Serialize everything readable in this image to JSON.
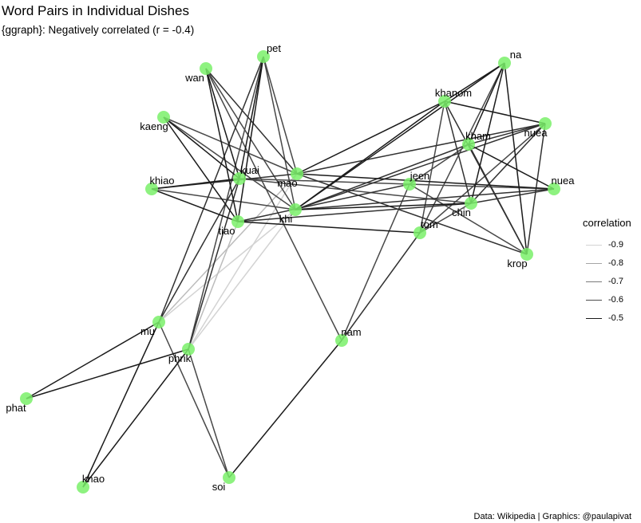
{
  "title": "Word Pairs in Individual Dishes",
  "subtitle": "{ggraph}: Negatively correlated (r = -0.4)",
  "caption": "Data: Wikipedia | Graphics: @paulapivat",
  "node_color": "#7af06a",
  "legend": {
    "title": "correlation",
    "items": [
      {
        "label": "-0.9",
        "value": -0.9,
        "color": "#d3d3d3"
      },
      {
        "label": "-0.8",
        "value": -0.8,
        "color": "#a6a6a6"
      },
      {
        "label": "-0.7",
        "value": -0.7,
        "color": "#7a7a7a"
      },
      {
        "label": "-0.6",
        "value": -0.6,
        "color": "#4d4d4d"
      },
      {
        "label": "-0.5",
        "value": -0.5,
        "color": "#1a1a1a"
      }
    ]
  },
  "graph": {
    "nodes": [
      {
        "id": "pet",
        "label": "pet"
      },
      {
        "id": "wan",
        "label": "wan"
      },
      {
        "id": "kaeng",
        "label": "kaeng"
      },
      {
        "id": "khiao",
        "label": "khiao"
      },
      {
        "id": "kuai",
        "label": "kuai"
      },
      {
        "id": "mao",
        "label": "mao"
      },
      {
        "id": "khi",
        "label": "khi"
      },
      {
        "id": "tiao",
        "label": "tiao"
      },
      {
        "id": "jeen",
        "label": "jeen"
      },
      {
        "id": "khanom",
        "label": "khanom"
      },
      {
        "id": "na",
        "label": "na"
      },
      {
        "id": "kham",
        "label": "kham"
      },
      {
        "id": "nuea_top",
        "label": "nuea"
      },
      {
        "id": "nuea",
        "label": "nuea"
      },
      {
        "id": "chin",
        "label": "chin"
      },
      {
        "id": "tom",
        "label": "tom"
      },
      {
        "id": "krop",
        "label": "krop"
      },
      {
        "id": "mu",
        "label": "mu"
      },
      {
        "id": "phrik",
        "label": "phrik"
      },
      {
        "id": "phat",
        "label": "phat"
      },
      {
        "id": "nam",
        "label": "nam"
      },
      {
        "id": "khao",
        "label": "khao"
      },
      {
        "id": "soi",
        "label": "soi"
      }
    ],
    "edges": [
      {
        "source": "wan",
        "target": "mao",
        "r": -0.55
      },
      {
        "source": "wan",
        "target": "kuai",
        "r": -0.5
      },
      {
        "source": "wan",
        "target": "tiao",
        "r": -0.5
      },
      {
        "source": "wan",
        "target": "khi",
        "r": -0.6
      },
      {
        "source": "wan",
        "target": "nam",
        "r": -0.6
      },
      {
        "source": "pet",
        "target": "kuai",
        "r": -0.5
      },
      {
        "source": "pet",
        "target": "tiao",
        "r": -0.5
      },
      {
        "source": "pet",
        "target": "khi",
        "r": -0.6
      },
      {
        "source": "pet",
        "target": "mao",
        "r": -0.6
      },
      {
        "source": "pet",
        "target": "mu",
        "r": -0.55
      },
      {
        "source": "pet",
        "target": "phrik",
        "r": -0.6
      },
      {
        "source": "kaeng",
        "target": "kuai",
        "r": -0.5
      },
      {
        "source": "kaeng",
        "target": "tiao",
        "r": -0.5
      },
      {
        "source": "kaeng",
        "target": "mao",
        "r": -0.6
      },
      {
        "source": "kaeng",
        "target": "khi",
        "r": -0.6
      },
      {
        "source": "khiao",
        "target": "kuai",
        "r": -0.5
      },
      {
        "source": "khiao",
        "target": "tiao",
        "r": -0.5
      },
      {
        "source": "khiao",
        "target": "mao",
        "r": -0.55
      },
      {
        "source": "khiao",
        "target": "khi",
        "r": -0.6
      },
      {
        "source": "kuai",
        "target": "jeen",
        "r": -0.6
      },
      {
        "source": "kuai",
        "target": "chin",
        "r": -0.6
      },
      {
        "source": "kuai",
        "target": "mu",
        "r": -0.55
      },
      {
        "source": "kuai",
        "target": "phrik",
        "r": -0.55
      },
      {
        "source": "tiao",
        "target": "tom",
        "r": -0.5
      },
      {
        "source": "tiao",
        "target": "jeen",
        "r": -0.55
      },
      {
        "source": "tiao",
        "target": "chin",
        "r": -0.55
      },
      {
        "source": "mao",
        "target": "khanom",
        "r": -0.5
      },
      {
        "source": "mao",
        "target": "nuea",
        "r": -0.5
      },
      {
        "source": "mao",
        "target": "nuea_top",
        "r": -0.55
      },
      {
        "source": "mao",
        "target": "krop",
        "r": -0.55
      },
      {
        "source": "khi",
        "target": "khanom",
        "r": -0.5
      },
      {
        "source": "khi",
        "target": "na",
        "r": -0.5
      },
      {
        "source": "khi",
        "target": "kham",
        "r": -0.55
      },
      {
        "source": "khi",
        "target": "nuea_top",
        "r": -0.55
      },
      {
        "source": "khi",
        "target": "chin",
        "r": -0.5
      },
      {
        "source": "khi",
        "target": "nuea",
        "r": -0.55
      },
      {
        "source": "khi",
        "target": "mu",
        "r": -0.9
      },
      {
        "source": "khi",
        "target": "phrik",
        "r": -0.9
      },
      {
        "source": "mao",
        "target": "phrik",
        "r": -0.9
      },
      {
        "source": "mao",
        "target": "mu",
        "r": -0.85
      },
      {
        "source": "tiao",
        "target": "phrik",
        "r": -0.85
      },
      {
        "source": "khanom",
        "target": "nuea_top",
        "r": -0.5
      },
      {
        "source": "khanom",
        "target": "chin",
        "r": -0.55
      },
      {
        "source": "khanom",
        "target": "krop",
        "r": -0.55
      },
      {
        "source": "khanom",
        "target": "tom",
        "r": -0.6
      },
      {
        "source": "na",
        "target": "khanom",
        "r": -0.5
      },
      {
        "source": "na",
        "target": "kham",
        "r": -0.5
      },
      {
        "source": "na",
        "target": "chin",
        "r": -0.5
      },
      {
        "source": "na",
        "target": "krop",
        "r": -0.5
      },
      {
        "source": "na",
        "target": "tom",
        "r": -0.6
      },
      {
        "source": "kham",
        "target": "nuea",
        "r": -0.5
      },
      {
        "source": "kham",
        "target": "krop",
        "r": -0.55
      },
      {
        "source": "kham",
        "target": "nuea_top",
        "r": -0.55
      },
      {
        "source": "kham",
        "target": "jeen",
        "r": -0.6
      },
      {
        "source": "nuea_top",
        "target": "chin",
        "r": -0.55
      },
      {
        "source": "nuea_top",
        "target": "krop",
        "r": -0.55
      },
      {
        "source": "nuea_top",
        "target": "tom",
        "r": -0.6
      },
      {
        "source": "jeen",
        "target": "nuea",
        "r": -0.6
      },
      {
        "source": "jeen",
        "target": "krop",
        "r": -0.6
      },
      {
        "source": "jeen",
        "target": "nam",
        "r": -0.6
      },
      {
        "source": "chin",
        "target": "nuea",
        "r": -0.55
      },
      {
        "source": "chin",
        "target": "tom",
        "r": -0.6
      },
      {
        "source": "tom",
        "target": "nam",
        "r": -0.55
      },
      {
        "source": "nam",
        "target": "soi",
        "r": -0.5
      },
      {
        "source": "mu",
        "target": "phat",
        "r": -0.5
      },
      {
        "source": "mu",
        "target": "khao",
        "r": -0.5
      },
      {
        "source": "mu",
        "target": "soi",
        "r": -0.6
      },
      {
        "source": "phrik",
        "target": "phat",
        "r": -0.5
      },
      {
        "source": "phrik",
        "target": "khao",
        "r": -0.5
      },
      {
        "source": "phrik",
        "target": "soi",
        "r": -0.6
      }
    ]
  }
}
